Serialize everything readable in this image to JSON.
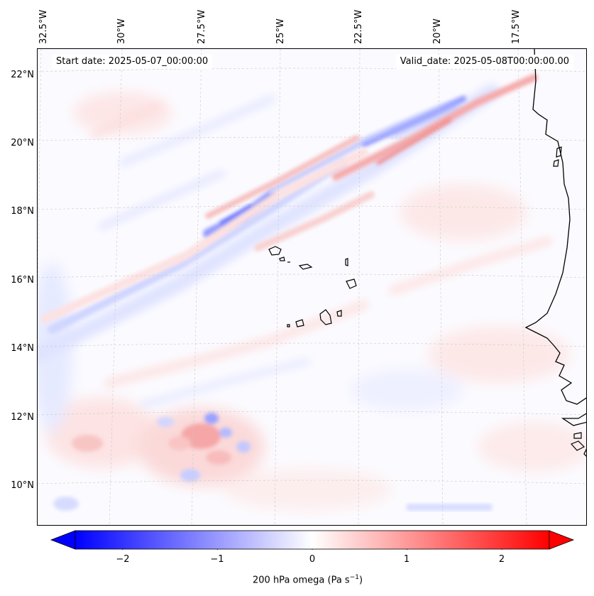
{
  "map": {
    "start_label": "Start date: 2025-05-07_00:00:00",
    "valid_label": "Valid_date: 2025-05-08T00:00:00.00",
    "lon_labels": [
      "32.5°W",
      "30°W",
      "27.5°W",
      "25°W",
      "22.5°W",
      "20°W",
      "17.5°W"
    ],
    "lat_labels": [
      "22°N",
      "20°N",
      "18°N",
      "16°N",
      "14°N",
      "12°N",
      "10°N"
    ],
    "colormap": {
      "negative": "#0000ff",
      "zero": "#ffffff",
      "positive": "#ff0000"
    }
  },
  "colorbar": {
    "label": "200 hPa omega (Pa s",
    "label_exp": "−1",
    "label_close": ")",
    "ticks": [
      "−2",
      "−1",
      "0",
      "1",
      "2"
    ],
    "range": [
      -2.5,
      2.5
    ]
  }
}
